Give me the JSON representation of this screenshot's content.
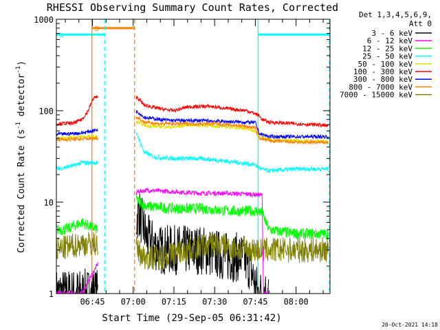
{
  "chart_data": {
    "type": "line",
    "title": "RHESSI Observing Summary Count Rates, Corrected",
    "xlabel": "Start Time (29-Sep-05 06:31:42)",
    "ylabel_main": "Corrected Count Rate (s",
    "ylabel_sup1": "-1",
    "ylabel_mid": " detector",
    "ylabel_sup2": "-1",
    "ylabel_end": ")",
    "yscale": "log",
    "ylim": [
      1,
      1000
    ],
    "xlim": [
      "06:31:42",
      "08:12:30"
    ],
    "x_unit": "minutes of day",
    "xlim_minutes": [
      391.7,
      492.5
    ],
    "x_ticks": [
      {
        "label": "06:45",
        "t": 405
      },
      {
        "label": "07:00",
        "t": 420
      },
      {
        "label": "07:15",
        "t": 435
      },
      {
        "label": "07:30",
        "t": 450
      },
      {
        "label": "07:45",
        "t": 465
      },
      {
        "label": "08:00",
        "t": 480
      }
    ],
    "y_ticks": [
      {
        "label": "1",
        "v": 1
      },
      {
        "label": "10",
        "v": 10
      },
      {
        "label": "100",
        "v": 100
      },
      {
        "label": "1000",
        "v": 1000
      }
    ],
    "legend_header": [
      "Det 1,3,4,5,6,9,",
      "Att 0"
    ],
    "legend_placement": "right",
    "gaps": [
      [
        407.0,
        421.0
      ]
    ],
    "series": [
      {
        "name": "3 - 6 keV",
        "color": "#000000",
        "noise": 0.55,
        "points": [
          [
            391.7,
            1.0
          ],
          [
            401.0,
            1.0
          ],
          [
            407.0,
            1.0
          ],
          [
            421.0,
            6.0
          ],
          [
            422.0,
            8.0
          ],
          [
            425.0,
            4.0
          ],
          [
            430.0,
            3.0
          ],
          [
            435.0,
            3.0
          ],
          [
            445.0,
            3.0
          ],
          [
            455.0,
            2.5
          ],
          [
            460.0,
            2.5
          ],
          [
            463.0,
            2.0
          ],
          [
            466.0,
            1.0
          ],
          [
            470.0,
            1.0
          ]
        ]
      },
      {
        "name": "6 - 12 keV",
        "color": "#ff00ff",
        "noise": 0.05,
        "points": [
          [
            391.7,
            1.0
          ],
          [
            401.0,
            1.0
          ],
          [
            421.5,
            13.0
          ],
          [
            425.0,
            13.5
          ],
          [
            435.0,
            13.0
          ],
          [
            445.0,
            12.5
          ],
          [
            455.0,
            12.5
          ],
          [
            467.5,
            12.0
          ],
          [
            468.0,
            1.0
          ],
          [
            470.0,
            1.0
          ]
        ]
      },
      {
        "name": "12 - 25 keV",
        "color": "#00ff00",
        "noise": 0.12,
        "points": [
          [
            391.7,
            5.0
          ],
          [
            395.0,
            5.0
          ],
          [
            401.0,
            6.0
          ],
          [
            407.0,
            5.0
          ],
          [
            421.5,
            10.5
          ],
          [
            425.0,
            9.0
          ],
          [
            435.0,
            8.5
          ],
          [
            445.0,
            8.5
          ],
          [
            455.0,
            8.0
          ],
          [
            466.0,
            8.0
          ],
          [
            467.5,
            7.5
          ],
          [
            470.0,
            5.0
          ],
          [
            480.0,
            4.5
          ],
          [
            492.0,
            4.5
          ]
        ]
      },
      {
        "name": "25 - 50 keV",
        "color": "#00ffff",
        "noise": 0.05,
        "points": [
          [
            391.7,
            23.0
          ],
          [
            398.0,
            25.0
          ],
          [
            401.0,
            27.0
          ],
          [
            407.0,
            27.0
          ],
          [
            421.5,
            55.0
          ],
          [
            424.0,
            35.0
          ],
          [
            428.0,
            31.0
          ],
          [
            435.0,
            30.0
          ],
          [
            445.0,
            30.0
          ],
          [
            455.0,
            28.0
          ],
          [
            465.0,
            25.5
          ],
          [
            467.0,
            23.0
          ],
          [
            470.0,
            22.0
          ],
          [
            480.0,
            23.0
          ],
          [
            492.0,
            23.0
          ]
        ]
      },
      {
        "name": "50 - 100 keV",
        "color": "#e0e000",
        "noise": 0.04,
        "points": [
          [
            391.7,
            50.0
          ],
          [
            401.0,
            52.0
          ],
          [
            407.0,
            52.0
          ],
          [
            421.5,
            75.0
          ],
          [
            425.0,
            68.0
          ],
          [
            435.0,
            66.0
          ],
          [
            440.0,
            70.0
          ],
          [
            450.0,
            68.0
          ],
          [
            460.0,
            65.0
          ],
          [
            465.0,
            60.0
          ],
          [
            466.0,
            52.0
          ],
          [
            470.0,
            48.0
          ],
          [
            480.0,
            47.0
          ],
          [
            492.0,
            46.0
          ]
        ]
      },
      {
        "name": "100 - 300 keV",
        "color": "#ff0000",
        "noise": 0.04,
        "points": [
          [
            391.7,
            72.0
          ],
          [
            398.0,
            73.0
          ],
          [
            401.0,
            80.0
          ],
          [
            403.0,
            95.0
          ],
          [
            405.5,
            140.0
          ],
          [
            421.5,
            140.0
          ],
          [
            424.0,
            115.0
          ],
          [
            430.0,
            105.0
          ],
          [
            435.0,
            100.0
          ],
          [
            440.0,
            110.0
          ],
          [
            448.0,
            112.0
          ],
          [
            455.0,
            105.0
          ],
          [
            462.0,
            100.0
          ],
          [
            466.0,
            90.0
          ],
          [
            467.5,
            80.0
          ],
          [
            470.0,
            75.0
          ],
          [
            480.0,
            72.0
          ],
          [
            488.0,
            70.0
          ],
          [
            492.0,
            68.0
          ]
        ]
      },
      {
        "name": "300 - 800 keV",
        "color": "#0000ff",
        "noise": 0.04,
        "points": [
          [
            391.7,
            55.0
          ],
          [
            401.0,
            57.0
          ],
          [
            407.0,
            62.0
          ],
          [
            421.5,
            98.0
          ],
          [
            424.0,
            85.0
          ],
          [
            430.0,
            80.0
          ],
          [
            435.0,
            78.0
          ],
          [
            445.0,
            78.0
          ],
          [
            455.0,
            76.0
          ],
          [
            465.0,
            74.0
          ],
          [
            466.5,
            56.0
          ],
          [
            470.0,
            52.0
          ],
          [
            480.0,
            52.0
          ],
          [
            492.0,
            52.0
          ]
        ]
      },
      {
        "name": "800 - 7000 keV",
        "color": "#ff8000",
        "noise": 0.04,
        "points": [
          [
            391.7,
            48.0
          ],
          [
            401.0,
            49.0
          ],
          [
            407.0,
            50.0
          ],
          [
            421.5,
            85.0
          ],
          [
            424.0,
            75.0
          ],
          [
            430.0,
            72.0
          ],
          [
            440.0,
            72.0
          ],
          [
            450.0,
            72.0
          ],
          [
            460.0,
            68.0
          ],
          [
            465.0,
            65.0
          ],
          [
            466.5,
            50.0
          ],
          [
            470.0,
            47.0
          ],
          [
            480.0,
            45.0
          ],
          [
            492.0,
            45.0
          ]
        ]
      },
      {
        "name": "7000 - 15000 keV",
        "color": "#808000",
        "noise": 0.28,
        "points": [
          [
            391.7,
            3.0
          ],
          [
            401.0,
            3.5
          ],
          [
            407.0,
            3.5
          ],
          [
            421.5,
            3.0
          ],
          [
            424.0,
            2.5
          ],
          [
            430.0,
            2.5
          ],
          [
            440.0,
            3.0
          ],
          [
            450.0,
            3.5
          ],
          [
            460.0,
            3.0
          ],
          [
            466.0,
            3.0
          ],
          [
            470.0,
            3.0
          ],
          [
            480.0,
            3.0
          ],
          [
            492.0,
            3.0
          ]
        ]
      }
    ],
    "bars": [
      {
        "label": "S",
        "color": "#ff8000",
        "y": 800,
        "t_start": 404.8,
        "t_end": 420.5
      },
      {
        "label": "N",
        "color": "#00ffff",
        "y": 680,
        "t_start": 391.7,
        "t_end": 409.5
      },
      {
        "label": "",
        "color": "#00ffff",
        "y": 680,
        "t_start": 466.0,
        "t_end": 492.3
      }
    ],
    "vlines": [
      {
        "t": 404.8,
        "color": "#ff8000",
        "dash": false
      },
      {
        "t": 409.5,
        "color": "#00ffff",
        "dash": true
      },
      {
        "t": 420.5,
        "color": "#ff8000",
        "dash": true
      },
      {
        "t": 466.0,
        "color": "#00ffff",
        "dash": false
      },
      {
        "t": 492.3,
        "color": "#00ffff",
        "dash": true
      }
    ],
    "footer_date": "20-Oct-2021 14:18"
  }
}
